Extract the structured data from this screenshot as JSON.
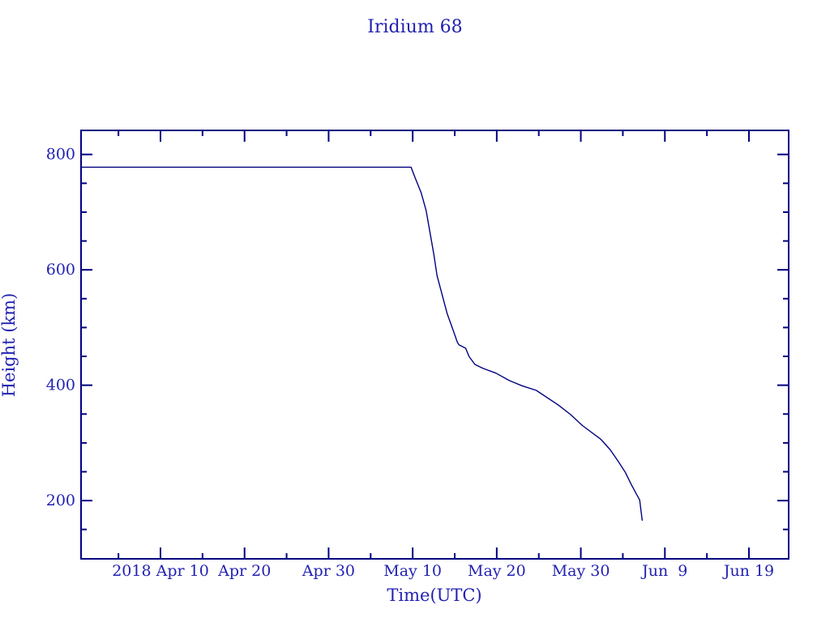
{
  "page": {
    "background_color": "#ffffff"
  },
  "colors": {
    "line": "#000080",
    "frame": "#000080",
    "text": "#2222b2"
  },
  "chart_data": {
    "type": "line",
    "title": "Iridium 68",
    "xlabel": "Time(UTC)",
    "ylabel": "Height (km)",
    "grid": false,
    "legend": null,
    "x_axis": {
      "unit": "date (UTC), days relative to 2018 Apr 10",
      "range_days": [
        -9.45,
        74.73
      ],
      "range_dates": [
        "2018 Mar 31",
        "2018 Jun 23"
      ],
      "major_tick_step_days": 10,
      "minor_tick_step_days": 5,
      "major_ticks": [
        {
          "label": "2018 Apr 10",
          "day": 0
        },
        {
          "label": "Apr 20",
          "day": 10
        },
        {
          "label": "Apr 30",
          "day": 20
        },
        {
          "label": "May 10",
          "day": 30
        },
        {
          "label": "May 20",
          "day": 40
        },
        {
          "label": "May 30",
          "day": 50
        },
        {
          "label": "Jun  9",
          "day": 60
        },
        {
          "label": "Jun 19",
          "day": 70
        }
      ]
    },
    "y_axis": {
      "unit": "km",
      "ylim": [
        100,
        841
      ],
      "major_tick_step": 200,
      "minor_tick_step": 50,
      "major_ticks": [
        {
          "label": "800",
          "value": 800
        },
        {
          "label": "600",
          "value": 600
        },
        {
          "label": "400",
          "value": 400
        },
        {
          "label": "200",
          "value": 200
        }
      ]
    },
    "series": [
      {
        "name": "Iridium 68 orbital height",
        "color": "#000080",
        "points": [
          {
            "date": "Mar 31",
            "day": -9.45,
            "km": 778
          },
          {
            "date": "Apr 10",
            "day": 0.0,
            "km": 778
          },
          {
            "date": "Apr 20",
            "day": 10.0,
            "km": 778
          },
          {
            "date": "Apr 30",
            "day": 20.0,
            "km": 778
          },
          {
            "date": "May 9",
            "day": 29.8,
            "km": 778
          },
          {
            "date": "May 10",
            "day": 30.3,
            "km": 759
          },
          {
            "date": "May 11",
            "day": 31.0,
            "km": 734
          },
          {
            "date": "May 11",
            "day": 31.6,
            "km": 703
          },
          {
            "date": "May 12",
            "day": 32.5,
            "km": 628
          },
          {
            "date": "May 12",
            "day": 32.9,
            "km": 590
          },
          {
            "date": "May 14",
            "day": 34.1,
            "km": 524
          },
          {
            "date": "May 14",
            "day": 34.8,
            "km": 496
          },
          {
            "date": "May 15",
            "day": 35.3,
            "km": 475
          },
          {
            "date": "May 15",
            "day": 35.5,
            "km": 470
          },
          {
            "date": "May 16",
            "day": 36.3,
            "km": 464
          },
          {
            "date": "May 16",
            "day": 36.7,
            "km": 450
          },
          {
            "date": "May 17",
            "day": 37.4,
            "km": 436
          },
          {
            "date": "May 18",
            "day": 38.4,
            "km": 429
          },
          {
            "date": "May 19",
            "day": 39.9,
            "km": 421
          },
          {
            "date": "May 21",
            "day": 41.5,
            "km": 408
          },
          {
            "date": "May 23",
            "day": 43.0,
            "km": 399
          },
          {
            "date": "May 24",
            "day": 44.7,
            "km": 391
          },
          {
            "date": "May 27",
            "day": 47.3,
            "km": 366
          },
          {
            "date": "May 28",
            "day": 48.8,
            "km": 349
          },
          {
            "date": "May 30",
            "day": 50.2,
            "km": 330
          },
          {
            "date": "Jun 1",
            "day": 52.4,
            "km": 306
          },
          {
            "date": "Jun 2",
            "day": 53.5,
            "km": 288
          },
          {
            "date": "Jun 3",
            "day": 54.5,
            "km": 267
          },
          {
            "date": "Jun 4",
            "day": 55.3,
            "km": 249
          },
          {
            "date": "Jun 5",
            "day": 56.0,
            "km": 228
          },
          {
            "date": "Jun 6",
            "day": 57.0,
            "km": 201
          },
          {
            "date": "Jun 6",
            "day": 57.3,
            "km": 166
          }
        ]
      }
    ]
  }
}
